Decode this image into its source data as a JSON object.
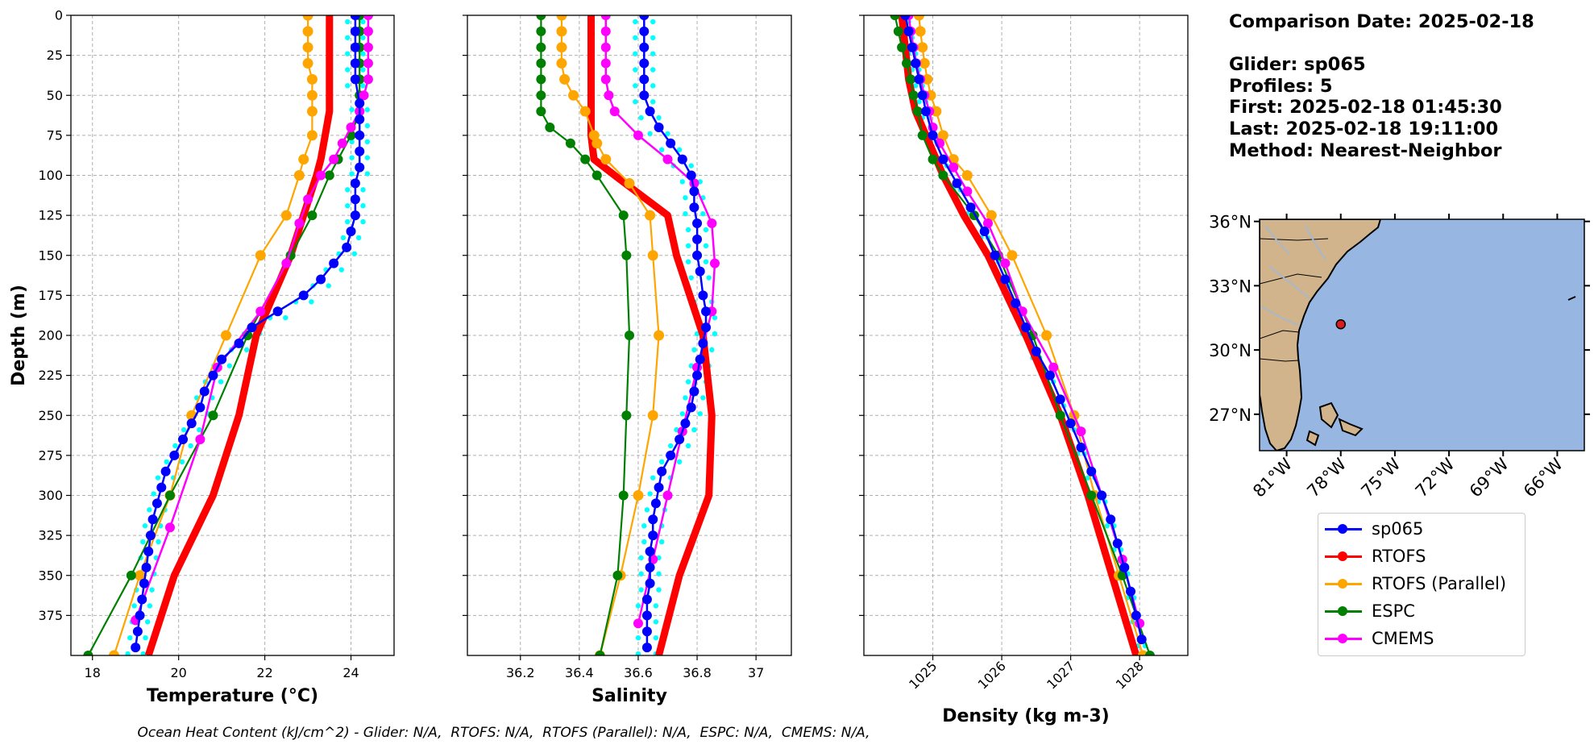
{
  "info": {
    "comparison_line": "Comparison Date: 2025-02-18",
    "glider_line": "Glider: sp065",
    "profiles_line": "Profiles: 5",
    "first_line": "First: 2025-02-18 01:45:30",
    "last_line": "Last: 2025-02-18 19:11:00",
    "method_line": "Method: Nearest-Neighbor"
  },
  "footer_text": "Ocean Heat Content (kJ/cm^2) - Glider: N/A,  RTOFS: N/A,  RTOFS (Parallel): N/A,  ESPC: N/A,  CMEMS: N/A,",
  "colors": {
    "sp065": "#0000ff",
    "RTOFS": "#ff0000",
    "RTOFS (Parallel)": "#ffa500",
    "ESPC": "#008000",
    "CMEMS": "#ff00ff",
    "raw": "#00ffff",
    "land": "#d2b48c",
    "ocean": "#97b6e1"
  },
  "legend": [
    {
      "name": "sp065",
      "color": "#0000ff"
    },
    {
      "name": "RTOFS",
      "color": "#ff0000"
    },
    {
      "name": "RTOFS (Parallel)",
      "color": "#ffa500"
    },
    {
      "name": "ESPC",
      "color": "#008000"
    },
    {
      "name": "CMEMS",
      "color": "#ff00ff"
    }
  ],
  "chart_data": [
    {
      "type": "line",
      "xlabel": "Temperature (°C)",
      "ylabel": "Depth (m)",
      "xlim": [
        17.5,
        25.0
      ],
      "ylim": [
        400,
        0
      ],
      "xticks": [
        18,
        20,
        22,
        24
      ],
      "yticks": [
        0,
        25,
        50,
        75,
        100,
        125,
        150,
        175,
        200,
        225,
        250,
        275,
        300,
        325,
        350,
        375
      ],
      "grid": true,
      "series": [
        {
          "name": "RTOFS",
          "depth": [
            0,
            10,
            20,
            30,
            40,
            50,
            60,
            75,
            90,
            100,
            125,
            150,
            200,
            250,
            300,
            350,
            400
          ],
          "values": [
            23.5,
            23.5,
            23.5,
            23.5,
            23.5,
            23.5,
            23.5,
            23.4,
            23.3,
            23.2,
            22.9,
            22.6,
            21.8,
            21.4,
            20.8,
            19.9,
            19.3
          ]
        },
        {
          "name": "RTOFS (Parallel)",
          "depth": [
            0,
            10,
            20,
            30,
            40,
            50,
            60,
            75,
            90,
            100,
            125,
            150,
            200,
            250,
            300,
            350,
            400
          ],
          "values": [
            23.0,
            23.0,
            23.0,
            23.0,
            23.1,
            23.1,
            23.1,
            23.1,
            22.9,
            22.8,
            22.5,
            21.9,
            21.1,
            20.3,
            19.8,
            19.1,
            18.5
          ]
        },
        {
          "name": "ESPC",
          "depth": [
            0,
            10,
            20,
            30,
            40,
            50,
            60,
            75,
            90,
            100,
            125,
            150,
            200,
            250,
            300,
            350,
            400
          ],
          "values": [
            24.2,
            24.2,
            24.2,
            24.2,
            24.2,
            24.2,
            24.2,
            24.0,
            23.7,
            23.5,
            23.1,
            22.6,
            21.6,
            20.8,
            19.8,
            18.9,
            17.9
          ]
        },
        {
          "name": "CMEMS",
          "depth": [
            0,
            10,
            20,
            30,
            40,
            50,
            60,
            70,
            80,
            90,
            100,
            115,
            130,
            155,
            185,
            220,
            265,
            320,
            378
          ],
          "values": [
            24.4,
            24.4,
            24.4,
            24.4,
            24.4,
            24.3,
            24.2,
            24.0,
            23.8,
            23.6,
            23.3,
            23.0,
            22.8,
            22.5,
            21.9,
            20.9,
            20.5,
            19.8,
            19.0
          ]
        },
        {
          "name": "sp065",
          "depth": [
            0,
            10,
            20,
            30,
            40,
            55,
            65,
            75,
            85,
            95,
            105,
            115,
            125,
            135,
            145,
            155,
            165,
            175,
            185,
            195,
            205,
            215,
            225,
            235,
            245,
            255,
            265,
            275,
            285,
            295,
            305,
            315,
            325,
            335,
            345,
            355,
            365,
            375,
            385,
            395
          ],
          "values": [
            24.1,
            24.1,
            24.1,
            24.1,
            24.1,
            24.2,
            24.2,
            24.2,
            24.2,
            24.2,
            24.1,
            24.1,
            24.1,
            24.0,
            23.9,
            23.6,
            23.3,
            22.9,
            22.3,
            21.7,
            21.4,
            21.0,
            20.8,
            20.6,
            20.5,
            20.3,
            20.1,
            19.9,
            19.7,
            19.6,
            19.5,
            19.4,
            19.35,
            19.3,
            19.25,
            19.2,
            19.15,
            19.1,
            19.05,
            19.0
          ]
        }
      ]
    },
    {
      "type": "line",
      "xlabel": "Salinity",
      "ylabel": "",
      "xlim": [
        36.02,
        37.12
      ],
      "ylim": [
        400,
        0
      ],
      "xticks": [
        36.2,
        36.4,
        36.6,
        36.8,
        37.0
      ],
      "grid": true,
      "series": [
        {
          "name": "RTOFS",
          "depth": [
            0,
            10,
            20,
            30,
            40,
            50,
            60,
            75,
            90,
            100,
            125,
            150,
            200,
            250,
            300,
            350,
            400
          ],
          "values": [
            36.44,
            36.44,
            36.44,
            36.44,
            36.44,
            36.44,
            36.44,
            36.44,
            36.45,
            36.52,
            36.7,
            36.73,
            36.82,
            36.85,
            36.84,
            36.74,
            36.67
          ]
        },
        {
          "name": "RTOFS (Parallel)",
          "depth": [
            0,
            10,
            20,
            30,
            40,
            50,
            60,
            75,
            80,
            90,
            105,
            125,
            150,
            200,
            250,
            300,
            350,
            400
          ],
          "values": [
            36.34,
            36.34,
            36.34,
            36.34,
            36.35,
            36.38,
            36.42,
            36.45,
            36.46,
            36.49,
            36.57,
            36.64,
            36.65,
            36.67,
            36.65,
            36.6,
            36.54,
            36.47
          ]
        },
        {
          "name": "ESPC",
          "depth": [
            0,
            10,
            20,
            30,
            40,
            50,
            60,
            70,
            80,
            90,
            100,
            125,
            150,
            200,
            250,
            300,
            350,
            400
          ],
          "values": [
            36.27,
            36.27,
            36.27,
            36.27,
            36.27,
            36.27,
            36.27,
            36.3,
            36.37,
            36.42,
            36.46,
            36.55,
            36.56,
            36.57,
            36.56,
            36.55,
            36.53,
            36.47
          ]
        },
        {
          "name": "CMEMS",
          "depth": [
            0,
            10,
            20,
            30,
            40,
            50,
            60,
            75,
            90,
            105,
            130,
            155,
            185,
            220,
            260,
            300,
            340,
            380
          ],
          "values": [
            36.49,
            36.49,
            36.49,
            36.49,
            36.49,
            36.5,
            36.52,
            36.6,
            36.7,
            36.79,
            36.85,
            36.86,
            36.85,
            36.8,
            36.75,
            36.7,
            36.65,
            36.6
          ]
        },
        {
          "name": "sp065",
          "depth": [
            0,
            10,
            20,
            30,
            40,
            50,
            60,
            70,
            80,
            90,
            100,
            110,
            120,
            130,
            140,
            150,
            160,
            175,
            185,
            195,
            205,
            215,
            225,
            235,
            245,
            255,
            265,
            275,
            285,
            295,
            305,
            315,
            325,
            335,
            345,
            355,
            365,
            375,
            385,
            395
          ],
          "values": [
            36.62,
            36.62,
            36.62,
            36.62,
            36.62,
            36.62,
            36.64,
            36.67,
            36.71,
            36.75,
            36.78,
            36.79,
            36.79,
            36.8,
            36.8,
            36.8,
            36.81,
            36.82,
            36.83,
            36.83,
            36.82,
            36.81,
            36.8,
            36.79,
            36.78,
            36.76,
            36.74,
            36.71,
            36.68,
            36.67,
            36.66,
            36.65,
            36.65,
            36.64,
            36.64,
            36.64,
            36.63,
            36.63,
            36.63,
            36.63
          ]
        }
      ]
    },
    {
      "type": "line",
      "xlabel": "Density (kg m-3)",
      "ylabel": "",
      "xlim": [
        1024.0,
        1028.7
      ],
      "ylim": [
        400,
        0
      ],
      "xticks": [
        1025,
        1026,
        1027,
        1028
      ],
      "grid": true,
      "series": [
        {
          "name": "RTOFS",
          "depth": [
            0,
            20,
            40,
            60,
            80,
            100,
            125,
            150,
            200,
            250,
            300,
            350,
            400
          ],
          "values": [
            1024.55,
            1024.6,
            1024.65,
            1024.75,
            1024.95,
            1025.15,
            1025.45,
            1025.8,
            1026.35,
            1026.85,
            1027.25,
            1027.6,
            1027.95
          ]
        },
        {
          "name": "RTOFS (Parallel)",
          "depth": [
            0,
            10,
            20,
            30,
            40,
            50,
            60,
            75,
            90,
            100,
            125,
            150,
            200,
            250,
            300,
            350,
            400
          ],
          "values": [
            1024.8,
            1024.82,
            1024.85,
            1024.88,
            1024.92,
            1024.97,
            1025.05,
            1025.15,
            1025.3,
            1025.5,
            1025.85,
            1026.15,
            1026.65,
            1027.05,
            1027.35,
            1027.7,
            1028.05
          ]
        },
        {
          "name": "ESPC",
          "depth": [
            0,
            10,
            20,
            30,
            40,
            50,
            60,
            75,
            90,
            100,
            125,
            150,
            200,
            250,
            300,
            350,
            400
          ],
          "values": [
            1024.45,
            1024.5,
            1024.55,
            1024.62,
            1024.68,
            1024.72,
            1024.78,
            1024.85,
            1025.0,
            1025.15,
            1025.6,
            1025.95,
            1026.45,
            1026.85,
            1027.3,
            1027.75,
            1028.15
          ]
        },
        {
          "name": "CMEMS",
          "depth": [
            0,
            10,
            20,
            30,
            40,
            50,
            60,
            70,
            80,
            95,
            110,
            130,
            155,
            185,
            220,
            260,
            300,
            340,
            380
          ],
          "values": [
            1024.65,
            1024.68,
            1024.72,
            1024.76,
            1024.82,
            1024.88,
            1024.95,
            1025.0,
            1025.1,
            1025.3,
            1025.5,
            1025.8,
            1026.05,
            1026.3,
            1026.75,
            1027.15,
            1027.45,
            1027.75,
            1028.0
          ]
        },
        {
          "name": "sp065",
          "depth": [
            0,
            10,
            20,
            30,
            40,
            50,
            60,
            75,
            90,
            105,
            120,
            135,
            150,
            165,
            180,
            195,
            210,
            225,
            240,
            255,
            270,
            285,
            300,
            315,
            330,
            345,
            360,
            375,
            390
          ],
          "values": [
            1024.6,
            1024.65,
            1024.7,
            1024.75,
            1024.8,
            1024.85,
            1024.9,
            1025.0,
            1025.15,
            1025.35,
            1025.55,
            1025.75,
            1025.9,
            1026.05,
            1026.2,
            1026.35,
            1026.5,
            1026.7,
            1026.85,
            1027.0,
            1027.15,
            1027.3,
            1027.45,
            1027.58,
            1027.68,
            1027.78,
            1027.87,
            1027.95,
            1028.03
          ]
        }
      ]
    },
    {
      "type": "map",
      "xticks": [
        "81°W",
        "78°W",
        "75°W",
        "72°W",
        "69°W",
        "66°W"
      ],
      "yticks": [
        "36°N",
        "33°N",
        "30°N",
        "27°N"
      ],
      "lon_range": [
        -82.5,
        -64.5
      ],
      "lat_range": [
        25.3,
        36.1
      ],
      "lon_values": [
        -81,
        -78,
        -75,
        -72,
        -69,
        -66
      ],
      "lat_values": [
        36,
        33,
        30,
        27
      ],
      "glider_position": [
        -78.0,
        31.2
      ]
    }
  ]
}
